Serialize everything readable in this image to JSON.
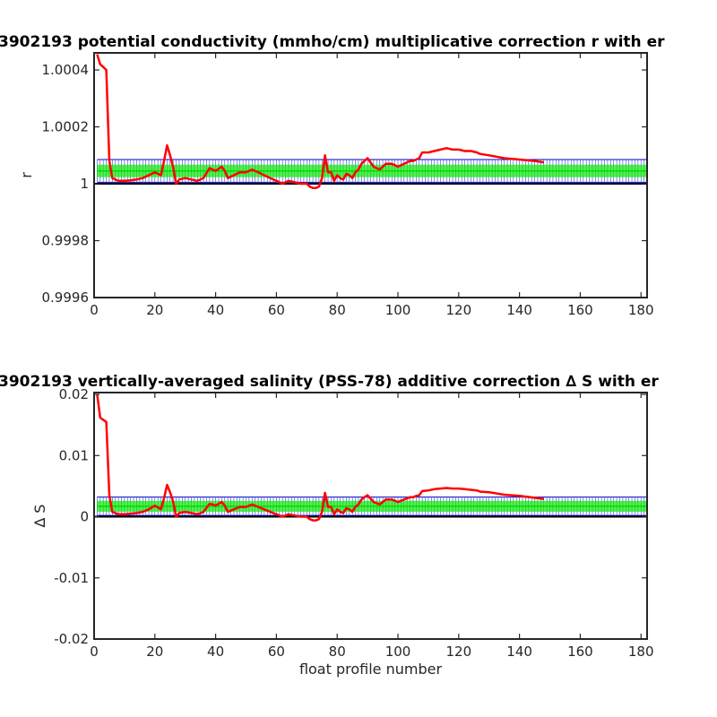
{
  "chart_data": [
    {
      "type": "line",
      "title": "3902193 potential conductivity (mmho/cm) multiplicative correction r with er",
      "xlabel": "",
      "ylabel": "r",
      "xlim": [
        0,
        182
      ],
      "ylim": [
        0.9996,
        1.00046
      ],
      "xticks": [
        0,
        20,
        40,
        60,
        80,
        100,
        120,
        140,
        160,
        180
      ],
      "xtick_labels": [
        "0",
        "20",
        "40",
        "60",
        "80",
        "100",
        "120",
        "140",
        "160",
        "180"
      ],
      "yticks": [
        0.9996,
        0.9998,
        1,
        1.0002,
        1.0004
      ],
      "ytick_labels": [
        "0.9996",
        "0.9998",
        "1",
        "1.0002",
        "1.0004"
      ],
      "reference_line": 1,
      "error_band": {
        "center": 1.000045,
        "inner_halfwidth": 2.2e-05,
        "outer_halfwidth": 4e-05,
        "x_range": [
          1,
          182
        ]
      },
      "series": [
        {
          "color": "#ff0000",
          "x": [
            1,
            2,
            4,
            5,
            6,
            8,
            10,
            12,
            14,
            16,
            18,
            20,
            22,
            23,
            24,
            25,
            26,
            27,
            28,
            30,
            32,
            34,
            36,
            38,
            39,
            40,
            42,
            43,
            44,
            46,
            48,
            50,
            52,
            54,
            56,
            58,
            60,
            62,
            64,
            66,
            68,
            70,
            71,
            72,
            73,
            74,
            75,
            76,
            77,
            78,
            79,
            80,
            81,
            82,
            83,
            84,
            85,
            86,
            87,
            88,
            89,
            90,
            92,
            94,
            96,
            98,
            100,
            102,
            104,
            105,
            106,
            107,
            108,
            110,
            112,
            114,
            116,
            118,
            120,
            122,
            124,
            126,
            127,
            130,
            135,
            140,
            145,
            148
          ],
          "y": [
            1.000455,
            1.00042,
            1.0004,
            1.00008,
            1.00002,
            1.00001,
            1.00001,
            1.000012,
            1.000015,
            1.00002,
            1.00003,
            1.00004,
            1.00003,
            1.00008,
            1.000135,
            1.0001,
            1.00006,
            1.0,
            1.000015,
            1.00002,
            1.000015,
            1.00001,
            1.00002,
            1.000055,
            1.00005,
            1.000045,
            1.00006,
            1.000045,
            1.00002,
            1.00003,
            1.00004,
            1.00004,
            1.00005,
            1.00004,
            1.00003,
            1.00002,
            1.00001,
            1.0,
            1.00001,
            1.000005,
            1.0,
            1.0,
            0.99999,
            0.999985,
            0.999985,
            0.99999,
            1.00002,
            1.0001,
            1.00004,
            1.00004,
            1.00001,
            1.00003,
            1.00002,
            1.000015,
            1.000035,
            1.00003,
            1.00002,
            1.00004,
            1.00005,
            1.00007,
            1.00008,
            1.00009,
            1.00006,
            1.00005,
            1.00007,
            1.00007,
            1.00006,
            1.00007,
            1.00008,
            1.00008,
            1.000085,
            1.00009,
            1.00011,
            1.00011,
            1.000115,
            1.00012,
            1.000125,
            1.00012,
            1.00012,
            1.000115,
            1.000115,
            1.00011,
            1.000105,
            1.0001,
            1.00009,
            1.000085,
            1.00008,
            1.000075
          ]
        }
      ]
    },
    {
      "type": "line",
      "title": "3902193 vertically-averaged salinity (PSS-78) additive correction ∆ S with er",
      "xlabel": "float profile number",
      "ylabel": "∆ S",
      "xlim": [
        0,
        182
      ],
      "ylim": [
        -0.02,
        0.0203
      ],
      "xticks": [
        0,
        20,
        40,
        60,
        80,
        100,
        120,
        140,
        160,
        180
      ],
      "xtick_labels": [
        "0",
        "20",
        "40",
        "60",
        "80",
        "100",
        "120",
        "140",
        "160",
        "180"
      ],
      "yticks": [
        -0.02,
        -0.01,
        0,
        0.01,
        0.02
      ],
      "ytick_labels": [
        "-0.02",
        "-0.01",
        "0",
        "0.01",
        "0.02"
      ],
      "reference_line": 0,
      "error_band": {
        "center": 0.0017,
        "inner_halfwidth": 0.0009,
        "outer_halfwidth": 0.0015,
        "x_range": [
          1,
          182
        ]
      },
      "series": [
        {
          "color": "#ff0000",
          "x": [
            1,
            2,
            4,
            5,
            6,
            8,
            10,
            12,
            14,
            16,
            18,
            20,
            22,
            23,
            24,
            25,
            26,
            27,
            28,
            30,
            32,
            34,
            36,
            38,
            39,
            40,
            42,
            43,
            44,
            46,
            48,
            50,
            52,
            54,
            56,
            58,
            60,
            62,
            64,
            66,
            68,
            70,
            71,
            72,
            73,
            74,
            75,
            76,
            77,
            78,
            79,
            80,
            81,
            82,
            83,
            84,
            85,
            86,
            87,
            88,
            89,
            90,
            92,
            94,
            96,
            98,
            100,
            102,
            104,
            105,
            106,
            107,
            108,
            110,
            112,
            114,
            116,
            118,
            120,
            122,
            124,
            126,
            127,
            130,
            135,
            140,
            145,
            148
          ],
          "y": [
            0.02,
            0.0162,
            0.0155,
            0.0035,
            0.0008,
            0.0004,
            0.0004,
            0.0005,
            0.0006,
            0.0008,
            0.0012,
            0.0018,
            0.0012,
            0.003,
            0.0052,
            0.004,
            0.0025,
            0.0,
            0.0006,
            0.0008,
            0.0006,
            0.0004,
            0.0008,
            0.0021,
            0.002,
            0.0018,
            0.0024,
            0.0018,
            0.0008,
            0.0012,
            0.0016,
            0.0016,
            0.002,
            0.0016,
            0.0012,
            0.0008,
            0.0004,
            0.0,
            0.0004,
            0.0002,
            0.0,
            0.0,
            -0.0004,
            -0.0006,
            -0.0006,
            -0.0004,
            0.0008,
            0.0039,
            0.0016,
            0.0016,
            0.0004,
            0.0012,
            0.0008,
            0.0006,
            0.0014,
            0.0012,
            0.0008,
            0.0016,
            0.002,
            0.0028,
            0.0032,
            0.0035,
            0.0024,
            0.002,
            0.0028,
            0.0028,
            0.0024,
            0.0028,
            0.0032,
            0.0032,
            0.0034,
            0.0035,
            0.0042,
            0.0043,
            0.0045,
            0.0046,
            0.0047,
            0.0046,
            0.0046,
            0.0045,
            0.0044,
            0.0043,
            0.0041,
            0.004,
            0.0036,
            0.0034,
            0.0031,
            0.0029
          ]
        }
      ]
    }
  ]
}
